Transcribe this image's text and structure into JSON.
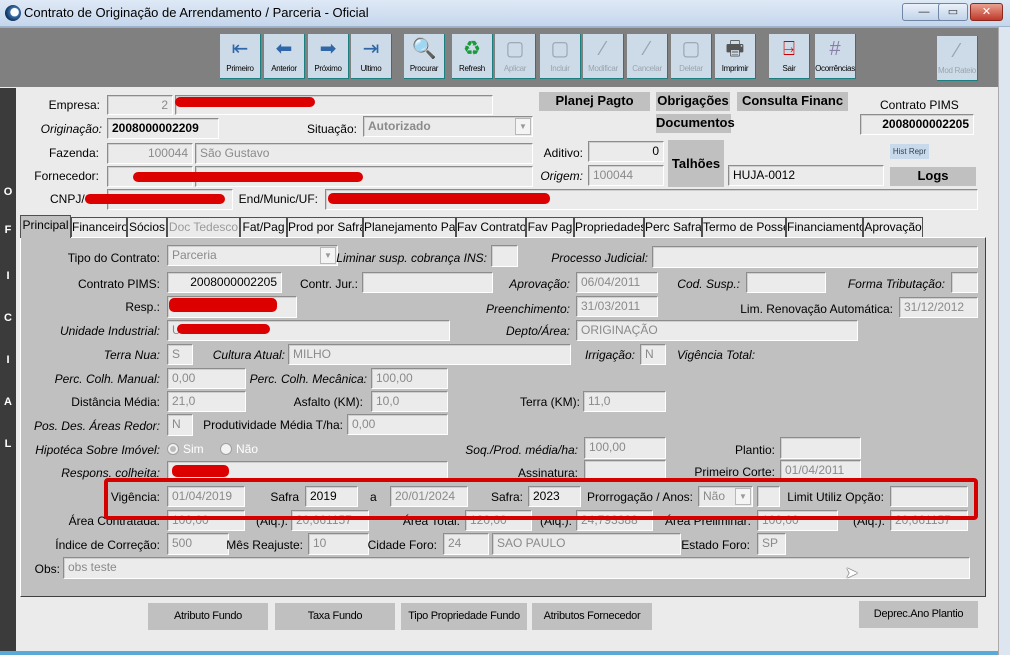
{
  "window": {
    "title": "Contrato de Originação de Arrendamento / Parceria - Oficial",
    "minimize": "—",
    "maximize": "▭",
    "close": "✕"
  },
  "toolbar": {
    "buttons": [
      {
        "label": "Primeiro",
        "icon": "first-record-icon",
        "glyph": "⇤",
        "enabled": true
      },
      {
        "label": "Anterior",
        "icon": "previous-record-icon",
        "glyph": "⬅",
        "enabled": true
      },
      {
        "label": "Próximo",
        "icon": "next-record-icon",
        "glyph": "➡",
        "enabled": true
      },
      {
        "label": "Ultimo",
        "icon": "last-record-icon",
        "glyph": "⇥",
        "enabled": true
      },
      {
        "label": "Procurar",
        "icon": "search-icon",
        "glyph": "🔍",
        "enabled": true
      },
      {
        "label": "Refresh",
        "icon": "refresh-icon",
        "glyph": "♻",
        "enabled": true
      },
      {
        "label": "Aplicar",
        "icon": "apply-icon",
        "glyph": "▢",
        "enabled": false
      },
      {
        "label": "Incluir",
        "icon": "insert-icon",
        "glyph": "▢",
        "enabled": false
      },
      {
        "label": "Modificar",
        "icon": "modify-icon",
        "glyph": "⁄",
        "enabled": false
      },
      {
        "label": "Cancelar",
        "icon": "cancel-icon",
        "glyph": "⁄",
        "enabled": false
      },
      {
        "label": "Deletar",
        "icon": "delete-icon",
        "glyph": "▢",
        "enabled": false
      },
      {
        "label": "Imprimir",
        "icon": "printer-icon",
        "glyph": "🖶",
        "enabled": true
      },
      {
        "label": "Sair",
        "icon": "exit-door-icon",
        "glyph": "⍈",
        "enabled": true
      },
      {
        "label": "Ocorrências",
        "icon": "grid-icon",
        "glyph": "#",
        "enabled": true
      },
      {
        "label": "Mod Rateio",
        "icon": "mod-rateio-icon",
        "glyph": "⁄",
        "enabled": false
      }
    ]
  },
  "side_label": [
    "O",
    "F",
    "I",
    "C",
    "I",
    "A",
    "L"
  ],
  "header": {
    "empresa_label": "Empresa:",
    "empresa_code": "2",
    "originacao_label": "Originação:",
    "originacao_value": "2008000002209",
    "situacao_label": "Situação:",
    "situacao_value": "Autorizado",
    "fazenda_label": "Fazenda:",
    "fazenda_code": "100044",
    "fazenda_name": "São Gustavo",
    "fornecedor_label": "Fornecedor:",
    "cnpj_label": "CNPJ/C",
    "end_label": "End/Munic/UF:",
    "aditivo_label": "Aditivo:",
    "aditivo_value": "0",
    "origem_label": "Origem:",
    "origem_value": "100044",
    "talhoes": "Talhões",
    "talhao_value": "HUJA-0012",
    "contrato_pims_label": "Contrato PIMS",
    "contrato_pims_value": "2008000002205",
    "planej_pagto": "Planej Pagto",
    "obrigacoes": "Obrigações",
    "consulta_financ": "Consulta Financ",
    "documentos": "Documentos",
    "hist_repr": "Hist Repr",
    "logs": "Logs"
  },
  "tabs": [
    {
      "label": "Principal",
      "active": true
    },
    {
      "label": "Financeiro"
    },
    {
      "label": "Sócios"
    },
    {
      "label": "Doc Tedesco",
      "disabled": true
    },
    {
      "label": "Fat/Pag"
    },
    {
      "label": "Prod por Safra"
    },
    {
      "label": "Planejamento Pag"
    },
    {
      "label": "Fav Contrato"
    },
    {
      "label": "Fav Pag"
    },
    {
      "label": "Propriedades"
    },
    {
      "label": "Perc Safra"
    },
    {
      "label": "Termo de Posse"
    },
    {
      "label": "Financiamento"
    },
    {
      "label": "Aprovação"
    }
  ],
  "principal": {
    "tipo_contrato_label": "Tipo do Contrato:",
    "tipo_contrato": "Parceria",
    "liminar_label": "Liminar susp. cobrança INS:",
    "liminar": "",
    "processo_label": "Processo Judicial:",
    "processo": "",
    "contrato_pims_label": "Contrato PIMS:",
    "contrato_pims": "2008000002205",
    "contr_jur_label": "Contr. Jur.:",
    "contr_jur": "",
    "aprovacao_label": "Aprovação:",
    "aprovacao": "06/04/2011",
    "cod_susp_label": "Cod. Susp.:",
    "cod_susp": "",
    "forma_trib_label": "Forma Tributação:",
    "forma_trib": "",
    "resp_label": "Resp.:",
    "preenchimento_label": "Preenchimento:",
    "preenchimento": "31/03/2011",
    "lim_renov_label": "Lim. Renovação Automática:",
    "lim_renov": "31/12/2012",
    "unidade_label": "Unidade Industrial:",
    "unidade_prefix": "U",
    "depto_label": "Depto/Área:",
    "depto": "ORIGINAÇÃO",
    "terra_nua_label": "Terra Nua:",
    "terra_nua": "S",
    "cultura_label": "Cultura Atual:",
    "cultura": "MILHO",
    "irrigacao_label": "Irrigação:",
    "irrigacao": "N",
    "vigencia_total_label": "Vigência Total:",
    "perc_manual_label": "Perc. Colh. Manual:",
    "perc_manual": "0,00",
    "perc_mec_label": "Perc. Colh. Mecânica:",
    "perc_mec": "100,00",
    "dist_media_label": "Distância Média:",
    "dist_media": "21,0",
    "asfalto_label": "Asfalto (KM):",
    "asfalto": "10,0",
    "terra_km_label": "Terra (KM):",
    "terra_km": "11,0",
    "pos_des_label": "Pos. Des. Áreas Redor:",
    "pos_des": "N",
    "produtividade_label": "Produtividade Média T/ha:",
    "produtividade": "0,00",
    "hipoteca_label": "Hipotéca Sobre Imóvel:",
    "hipoteca_sim": "Sim",
    "hipoteca_nao": "Não",
    "hipoteca_selected": "Sim",
    "soq_label": "Soq./Prod. média/ha:",
    "soq": "100,00",
    "plantio_label": "Plantio:",
    "plantio": "",
    "respons_label": "Respons. colheita:",
    "assinatura_label": "Assinatura:",
    "assinatura": "",
    "primeiro_corte_label": "Primeiro Corte:",
    "primeiro_corte": "01/04/2011",
    "vigencia_label": "Vigência:",
    "vigencia_inicio": "01/04/2019",
    "safra1_label": "Safra",
    "safra1": "2019",
    "a_label": "a",
    "vigencia_fim": "20/01/2024",
    "safra2_label": "Safra:",
    "safra2": "2023",
    "prorrogacao_label": "Prorrogação / Anos:",
    "prorrogacao": "Não",
    "prorrogacao_anos": "",
    "limit_label": "Limit Utiliz Opção:",
    "limit": "",
    "area_contratada_label": "Área Contratada:",
    "area_contratada": "100,00",
    "alq_label": "(Alq.):",
    "alq1": "20,661157",
    "area_total_label": "Área Total:",
    "area_total": "120,00",
    "alq2": "24,793388",
    "area_prelim_label": "Área Preliminar:",
    "area_prelim": "100,00",
    "alq3": "20,661157",
    "indice_label": "Índice de Correção:",
    "indice": "500",
    "mes_reajuste_label": "Mês Reajuste:",
    "mes_reajuste": "10",
    "cidade_foro_label": "Cidade Foro:",
    "cidade_foro_code": "24",
    "cidade_foro": "SAO PAULO",
    "estado_foro_label": "Estado Foro:",
    "estado_foro": "SP",
    "obs_label": "Obs:",
    "obs": "obs teste"
  },
  "bottom_buttons": [
    "Atributo Fundo",
    "Taxa Fundo",
    "Tipo Propriedade Fundo",
    "Atributos Fornecedor",
    "Deprec.Ano Plantio"
  ],
  "colors": {
    "highlight": "#d40000",
    "redaction": "#dd0000",
    "panel": "#c0c0c0",
    "toolbar": "#808080"
  }
}
